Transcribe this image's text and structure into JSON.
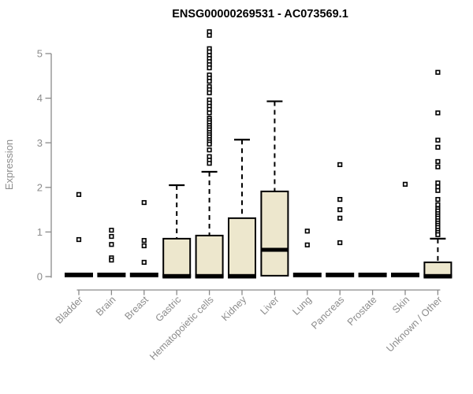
{
  "chart_data": {
    "type": "box",
    "title": "ENSG00000269531 - AC073569.1",
    "ylabel": "Expression",
    "ylim": [
      0,
      5.2
    ],
    "yticks": [
      0,
      1,
      2,
      3,
      4,
      5
    ],
    "grid": false,
    "legend": "none",
    "categories": [
      "Bladder",
      "Brain",
      "Breast",
      "Gastric",
      "Hematopoietic cells",
      "Kidney",
      "Liver",
      "Lung",
      "Pancreas",
      "Prostate",
      "Skin",
      "Unknown / Other"
    ],
    "boxes": [
      {
        "category": "Bladder",
        "q1": 0,
        "median": 0,
        "q3": 0,
        "whisker_low": 0,
        "whisker_high": 0,
        "outliers": [
          1.84,
          0.83
        ]
      },
      {
        "category": "Brain",
        "q1": 0,
        "median": 0,
        "q3": 0,
        "whisker_low": 0,
        "whisker_high": 0,
        "outliers": [
          1.04,
          0.9,
          0.72,
          0.42,
          0.37
        ]
      },
      {
        "category": "Breast",
        "q1": 0,
        "median": 0,
        "q3": 0,
        "whisker_low": 0,
        "whisker_high": 0,
        "outliers": [
          1.66,
          0.81,
          0.69,
          0.32
        ]
      },
      {
        "category": "Gastric",
        "q1": 0,
        "median": 0,
        "q3": 0.85,
        "whisker_low": 0,
        "whisker_high": 2.05,
        "outliers": []
      },
      {
        "category": "Hematopoietic cells",
        "q1": 0,
        "median": 0,
        "q3": 0.92,
        "whisker_low": 0,
        "whisker_high": 2.35,
        "outliers": [
          5.49,
          5.41,
          5.11,
          5.04,
          4.96,
          4.89,
          4.82,
          4.75,
          4.68,
          4.52,
          4.45,
          4.38,
          4.26,
          4.19,
          4.12,
          3.96,
          3.89,
          3.82,
          3.75,
          3.67,
          3.55,
          3.5,
          3.45,
          3.39,
          3.34,
          3.29,
          3.23,
          3.18,
          3.13,
          3.07,
          3.02,
          2.97,
          2.84,
          2.69,
          2.61,
          2.54
        ]
      },
      {
        "category": "Kidney",
        "q1": 0,
        "median": 0,
        "q3": 1.31,
        "whisker_low": 0,
        "whisker_high": 3.07,
        "outliers": []
      },
      {
        "category": "Liver",
        "q1": 0.02,
        "median": 0.6,
        "q3": 1.91,
        "whisker_low": 0.02,
        "whisker_high": 3.93,
        "outliers": []
      },
      {
        "category": "Lung",
        "q1": 0,
        "median": 0,
        "q3": 0,
        "whisker_low": 0,
        "whisker_high": 0,
        "outliers": [
          1.02,
          0.71
        ]
      },
      {
        "category": "Pancreas",
        "q1": 0,
        "median": 0,
        "q3": 0,
        "whisker_low": 0,
        "whisker_high": 0,
        "outliers": [
          2.51,
          1.73,
          1.5,
          1.31,
          0.76
        ]
      },
      {
        "category": "Prostate",
        "q1": 0,
        "median": 0,
        "q3": 0,
        "whisker_low": 0,
        "whisker_high": 0,
        "outliers": []
      },
      {
        "category": "Skin",
        "q1": 0,
        "median": 0,
        "q3": 0,
        "whisker_low": 0,
        "whisker_high": 0,
        "outliers": [
          2.07
        ]
      },
      {
        "category": "Unknown / Other",
        "q1": 0,
        "median": 0,
        "q3": 0.32,
        "whisker_low": 0,
        "whisker_high": 0.85,
        "outliers": [
          4.58,
          3.67,
          3.06,
          2.9,
          2.58,
          2.46,
          2.1,
          2.01,
          1.93,
          1.73,
          1.61,
          1.52,
          1.47,
          1.41,
          1.36,
          1.31,
          1.25,
          1.2,
          1.15,
          1.1,
          1.04,
          0.99,
          0.94
        ]
      }
    ],
    "colors": {
      "box_fill": "#EDE7CD",
      "box_border": "#000000",
      "median": "#000000",
      "whisker": "#000000",
      "outlier_fill": "#FFFFFF",
      "outlier_border": "#000000",
      "axis": "#8A8A8A",
      "tick_label": "#8C8C8C",
      "title": "#000000"
    }
  }
}
